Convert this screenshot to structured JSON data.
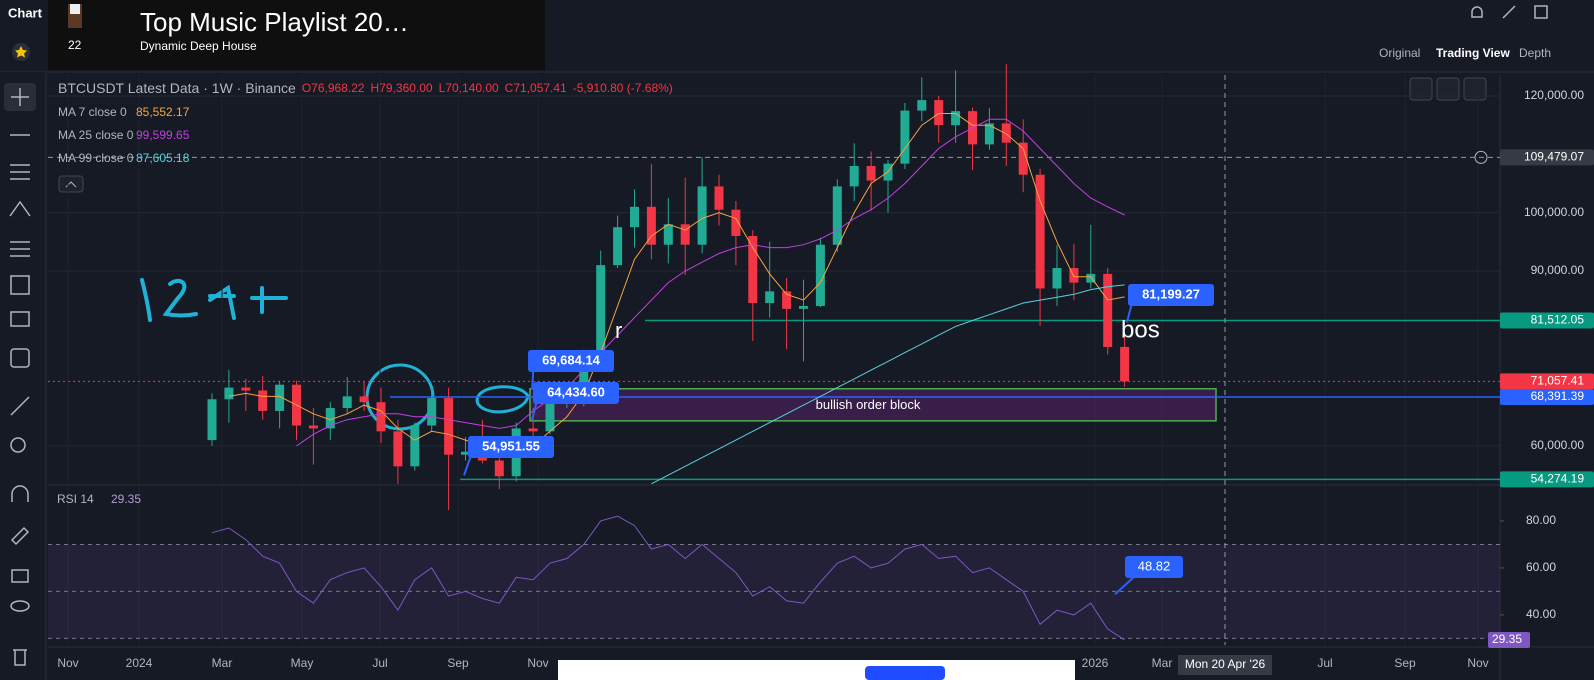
{
  "app": {
    "tab": "Chart",
    "views": [
      "Original",
      "Trading View",
      "Depth"
    ],
    "active_view": "Trading View",
    "overlay": {
      "title": "Top Music Playlist 20…",
      "subtitle": "Dynamic Deep House",
      "count": "22"
    }
  },
  "chart_data": {
    "type": "candlestick",
    "header": {
      "symbol": "BTCUSDT Latest Data · 1W · Binance",
      "open": "O76,968.22",
      "high": "H79,360.00",
      "low": "L70,140.00",
      "close": "C71,057.41",
      "change": "-5,910.80 (-7.68%)"
    },
    "ohlc": [
      [
        61000,
        69000,
        60000,
        68000
      ],
      [
        68000,
        73000,
        64000,
        70000
      ],
      [
        70000,
        71500,
        66000,
        69500
      ],
      [
        69500,
        72000,
        64500,
        66000
      ],
      [
        66000,
        71000,
        63000,
        70500
      ],
      [
        70500,
        71200,
        61000,
        63500
      ],
      [
        63500,
        66500,
        56800,
        63000
      ],
      [
        63000,
        67500,
        61000,
        66500
      ],
      [
        66500,
        71800,
        65500,
        68500
      ],
      [
        68500,
        71000,
        66000,
        67500
      ],
      [
        67500,
        70000,
        60500,
        62500
      ],
      [
        62500,
        64500,
        53500,
        56500
      ],
      [
        56500,
        64000,
        55800,
        63500
      ],
      [
        63500,
        70000,
        62500,
        68200
      ],
      [
        68200,
        70000,
        49000,
        58500
      ],
      [
        58500,
        61500,
        57500,
        59000
      ],
      [
        59000,
        64500,
        57000,
        57500
      ],
      [
        57500,
        60500,
        52600,
        54800
      ],
      [
        54800,
        64000,
        53900,
        63000
      ],
      [
        63000,
        66500,
        59500,
        62500
      ],
      [
        62500,
        68500,
        62000,
        68300
      ],
      [
        68300,
        70000,
        66500,
        69500
      ],
      [
        69500,
        76500,
        66800,
        76000
      ],
      [
        76000,
        93500,
        75500,
        91000
      ],
      [
        91000,
        99500,
        90500,
        97500
      ],
      [
        97500,
        104000,
        94000,
        101000
      ],
      [
        101000,
        108300,
        92000,
        94500
      ],
      [
        94500,
        102500,
        91300,
        98000
      ],
      [
        98000,
        106000,
        89300,
        94500
      ],
      [
        94500,
        109500,
        93000,
        104500
      ],
      [
        104500,
        106500,
        97800,
        100500
      ],
      [
        100500,
        102000,
        91000,
        96000
      ],
      [
        96000,
        97000,
        78000,
        84500
      ],
      [
        84500,
        95000,
        82000,
        86500
      ],
      [
        86500,
        88800,
        76600,
        83500
      ],
      [
        83500,
        88500,
        74500,
        84000
      ],
      [
        84000,
        95700,
        83800,
        94500
      ],
      [
        94500,
        105700,
        93300,
        104500
      ],
      [
        104500,
        111900,
        102000,
        108000
      ],
      [
        108000,
        110500,
        100300,
        105500
      ],
      [
        105500,
        109000,
        100000,
        108400
      ],
      [
        108400,
        118800,
        107500,
        117500
      ],
      [
        117500,
        123200,
        115700,
        119300
      ],
      [
        119300,
        120000,
        112000,
        115000
      ],
      [
        115000,
        124400,
        112000,
        117400
      ],
      [
        117400,
        118000,
        107300,
        111700
      ],
      [
        111700,
        117900,
        110800,
        115300
      ],
      [
        115300,
        125500,
        108000,
        112000
      ],
      [
        112000,
        116000,
        103500,
        106500
      ],
      [
        106500,
        107500,
        80600,
        87000
      ],
      [
        87000,
        94500,
        84000,
        90500
      ],
      [
        90500,
        94600,
        85000,
        88000
      ],
      [
        88000,
        97900,
        87000,
        89500
      ],
      [
        89500,
        90500,
        75700,
        76968.22
      ],
      [
        76968.22,
        79360,
        70140,
        71057.41
      ]
    ],
    "up_color": "#22ab94",
    "down_color": "#f23645",
    "series": [
      {
        "name": "MA 7 close 0",
        "legend_value": "85,552.17",
        "color": "#f7a440",
        "values": [
          null,
          68500,
          69000,
          68500,
          68500,
          67000,
          65500,
          64500,
          65500,
          67000,
          66000,
          63000,
          61000,
          62500,
          62000,
          61000,
          60000,
          58500,
          59000,
          60000,
          62500,
          65000,
          69000,
          76000,
          84000,
          92000,
          96000,
          98000,
          97000,
          99000,
          100000,
          99000,
          94000,
          89500,
          86000,
          85000,
          88000,
          94000,
          100000,
          105000,
          107000,
          111000,
          115000,
          117000,
          117000,
          115000,
          115000,
          113500,
          111000,
          102000,
          95000,
          89000,
          89000,
          85000,
          85552.17
        ]
      },
      {
        "name": "MA 25 close 0",
        "legend_value": "99,599.65",
        "color": "#c33fe0",
        "values": [
          null,
          null,
          null,
          null,
          null,
          60000,
          62000,
          63500,
          64500,
          65000,
          65500,
          65500,
          65000,
          65000,
          64500,
          64000,
          63500,
          63000,
          63500,
          66000,
          68000,
          70000,
          73000,
          76000,
          79000,
          82000,
          85000,
          88000,
          90000,
          91500,
          93000,
          94000,
          94500,
          94000,
          94000,
          94500,
          95500,
          97000,
          99000,
          100500,
          102500,
          105000,
          108000,
          111000,
          113000,
          114500,
          116000,
          116000,
          114000,
          111000,
          108000,
          105000,
          102500,
          101000,
          99599.65
        ]
      },
      {
        "name": "MA 99 close 0",
        "legend_value": "87,605.18",
        "color": "#5ad1e0",
        "values": [
          null,
          null,
          null,
          null,
          null,
          null,
          null,
          null,
          null,
          null,
          null,
          null,
          null,
          null,
          null,
          null,
          null,
          null,
          null,
          null,
          null,
          null,
          null,
          null,
          null,
          null,
          53500,
          55000,
          56500,
          58000,
          59500,
          61000,
          62500,
          64000,
          65500,
          67000,
          68500,
          70000,
          71500,
          73000,
          74500,
          76000,
          77500,
          79000,
          80500,
          81500,
          82500,
          83500,
          84500,
          85000,
          85500,
          86000,
          86800,
          87300,
          87605.18
        ]
      }
    ],
    "ylim": [
      53300,
      123600
    ],
    "yticks": [
      {
        "value": 60000,
        "label": "60,000.00"
      },
      {
        "value": 90000,
        "label": "90,000.00"
      },
      {
        "value": 100000,
        "label": "100,000.00"
      },
      {
        "value": 120000,
        "label": "120,000.00"
      }
    ],
    "hlines": [
      {
        "value": 109479.07,
        "label": "109,479.07",
        "color": "#9598a1",
        "style": "crosshair"
      },
      {
        "value": 81512.05,
        "label": "81,512.05",
        "color": "#089981",
        "style": "solid"
      },
      {
        "value": 71057.41,
        "label": "71,057.41",
        "color": "#f23645",
        "style": "dotted"
      },
      {
        "value": 68391.39,
        "label": "68,391.39",
        "color": "#2962ff",
        "style": "solid"
      },
      {
        "value": 54274.19,
        "label": "54,274.19",
        "color": "#089981",
        "style": "solid"
      }
    ],
    "callouts": [
      {
        "value": 81199.27,
        "label": "81,199.27"
      },
      {
        "value": 69684.14,
        "label": "69,684.14"
      },
      {
        "value": 64434.6,
        "label": "64,434.60"
      },
      {
        "value": 54951.55,
        "label": "54,951.55"
      }
    ],
    "order_block": {
      "label": "bullish order block",
      "range": [
        64300,
        69800
      ]
    },
    "annotations": [
      "r",
      "bos"
    ],
    "x_labels": [
      "Nov",
      "2024",
      "Mar",
      "May",
      "Jul",
      "Sep",
      "Nov",
      "2026",
      "Mar",
      "Jul",
      "Sep",
      "Nov"
    ],
    "crosshair_label": "Mon 20 Apr '26",
    "rsi": {
      "name": "RSI 14",
      "legend_value": "29.35",
      "color": "#7e57c2",
      "values": [
        75,
        77,
        72,
        65,
        62,
        50,
        45,
        55,
        58,
        60,
        52,
        42,
        55,
        60,
        48,
        50,
        47,
        45,
        56,
        55,
        62,
        64,
        70,
        80,
        82,
        78,
        68,
        70,
        64,
        70,
        64,
        58,
        48,
        52,
        46,
        45,
        54,
        62,
        65,
        60,
        62,
        68,
        70,
        64,
        65,
        58,
        60,
        55,
        50,
        36,
        42,
        40,
        45,
        34,
        29.35
      ],
      "ylim": [
        27.2,
        95.3
      ],
      "yticks": [
        {
          "value": 40,
          "label": "40.00"
        },
        {
          "value": 60,
          "label": "60.00"
        },
        {
          "value": 80,
          "label": "80.00"
        }
      ],
      "band": [
        30,
        70
      ],
      "mid": 50,
      "last": {
        "value": 29.35,
        "label": "29.35"
      },
      "callout": {
        "value": 48.82,
        "label": "48.82"
      }
    }
  }
}
